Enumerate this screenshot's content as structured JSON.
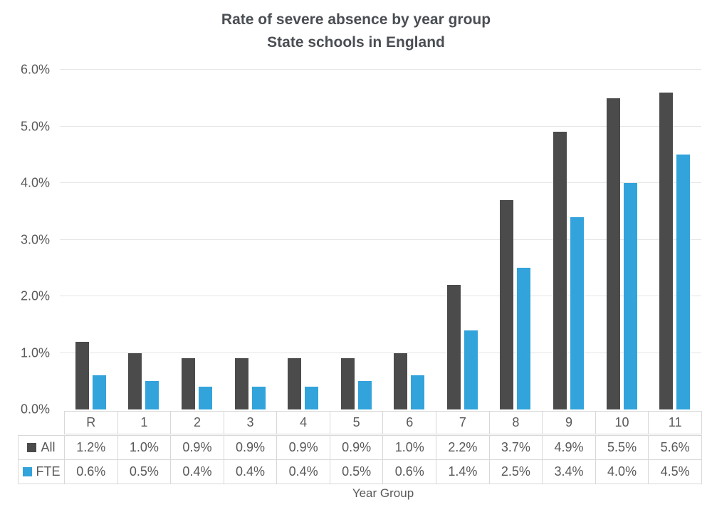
{
  "chart_data": {
    "type": "bar",
    "title": "Rate of severe absence by year group",
    "subtitle": "State schools in England",
    "xlabel": "Year Group",
    "ylabel": "",
    "categories": [
      "R",
      "1",
      "2",
      "3",
      "4",
      "5",
      "6",
      "7",
      "8",
      "9",
      "10",
      "11"
    ],
    "series": [
      {
        "name": "All",
        "color": "#4b4b4b",
        "values": [
          1.2,
          1.0,
          0.9,
          0.9,
          0.9,
          0.9,
          1.0,
          2.2,
          3.7,
          4.9,
          5.5,
          5.6
        ],
        "labels": [
          "1.2%",
          "1.0%",
          "0.9%",
          "0.9%",
          "0.9%",
          "0.9%",
          "1.0%",
          "2.2%",
          "3.7%",
          "4.9%",
          "5.5%",
          "5.6%"
        ]
      },
      {
        "name": "FTE",
        "color": "#32a3db",
        "values": [
          0.6,
          0.5,
          0.4,
          0.4,
          0.4,
          0.5,
          0.6,
          1.4,
          2.5,
          3.4,
          4.0,
          4.5
        ],
        "labels": [
          "0.6%",
          "0.5%",
          "0.4%",
          "0.4%",
          "0.4%",
          "0.5%",
          "0.6%",
          "1.4%",
          "2.5%",
          "3.4%",
          "4.0%",
          "4.5%"
        ]
      }
    ],
    "y_ticks": [
      "0.0%",
      "1.0%",
      "2.0%",
      "3.0%",
      "4.0%",
      "5.0%",
      "6.0%"
    ],
    "ylim": [
      0,
      6
    ],
    "grid": "horizontal gridlines",
    "legend_position": "row headers of data table below chart"
  },
  "palette": {
    "grid": "#e6e6e6",
    "table_border": "#d8d8d8",
    "text": "#595959",
    "title": "#4a4e53"
  }
}
